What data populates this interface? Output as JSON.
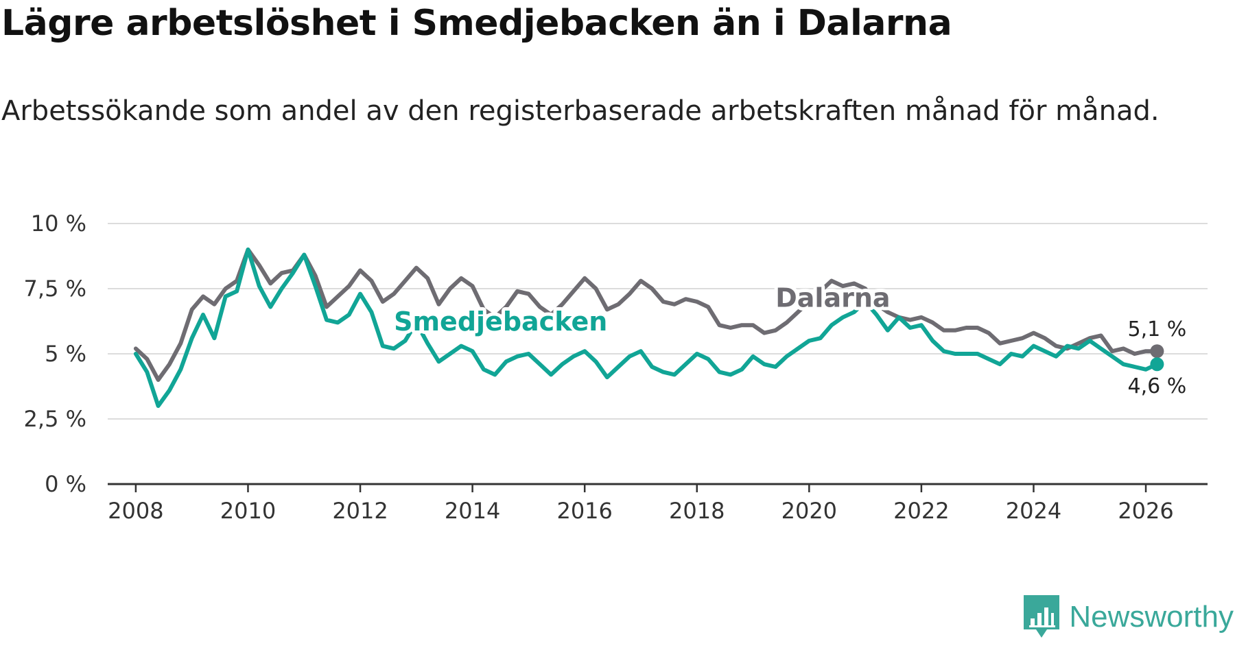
{
  "header": {
    "title": "Lägre arbetslöshet i Smedjebacken än i Dalarna",
    "subtitle": "Arbetssökande som andel av den registerbaserade arbetskraften månad för månad."
  },
  "brand": {
    "name": "Newsworthy",
    "icon": "bar-chart-icon",
    "color": "#3aa89a"
  },
  "chart_data": {
    "type": "line",
    "title": "Lägre arbetslöshet i Smedjebacken än i Dalarna",
    "subtitle": "Arbetssökande som andel av den registerbaserade arbetskraften månad för månad.",
    "xlabel": "",
    "ylabel": "",
    "xlim": [
      2007.5,
      2027.1
    ],
    "ylim": [
      0,
      10
    ],
    "x_ticks": [
      2008,
      2010,
      2012,
      2014,
      2016,
      2018,
      2020,
      2022,
      2024,
      2026
    ],
    "x_tick_labels": [
      "2008",
      "2010",
      "2012",
      "2014",
      "2016",
      "2018",
      "2020",
      "2022",
      "2024",
      "2026"
    ],
    "y_ticks": [
      0,
      2.5,
      5,
      7.5,
      10
    ],
    "y_tick_labels": [
      "0 %",
      "2,5 %",
      "5 %",
      "7,5 %",
      "10 %"
    ],
    "grid": true,
    "series": [
      {
        "name": "Dalarna",
        "color": "#6e6c72",
        "end_label": "5,1 %",
        "x": [
          2008.0,
          2008.2,
          2008.4,
          2008.6,
          2008.8,
          2009.0,
          2009.2,
          2009.4,
          2009.6,
          2009.8,
          2010.0,
          2010.2,
          2010.4,
          2010.6,
          2010.8,
          2011.0,
          2011.2,
          2011.4,
          2011.6,
          2011.8,
          2012.0,
          2012.2,
          2012.4,
          2012.6,
          2012.8,
          2013.0,
          2013.2,
          2013.4,
          2013.6,
          2013.8,
          2014.0,
          2014.2,
          2014.4,
          2014.6,
          2014.8,
          2015.0,
          2015.2,
          2015.4,
          2015.6,
          2015.8,
          2016.0,
          2016.2,
          2016.4,
          2016.6,
          2016.8,
          2017.0,
          2017.2,
          2017.4,
          2017.6,
          2017.8,
          2018.0,
          2018.2,
          2018.4,
          2018.6,
          2018.8,
          2019.0,
          2019.2,
          2019.4,
          2019.6,
          2019.8,
          2020.0,
          2020.2,
          2020.4,
          2020.6,
          2020.8,
          2021.0,
          2021.2,
          2021.4,
          2021.6,
          2021.8,
          2022.0,
          2022.2,
          2022.4,
          2022.6,
          2022.8,
          2023.0,
          2023.2,
          2023.4,
          2023.6,
          2023.8,
          2024.0,
          2024.2,
          2024.4,
          2024.6,
          2024.8,
          2025.0,
          2025.2,
          2025.4,
          2025.6,
          2025.8,
          2026.0,
          2026.2
        ],
        "y": [
          5.2,
          4.8,
          4.0,
          4.6,
          5.4,
          6.7,
          7.2,
          6.9,
          7.5,
          7.8,
          9.0,
          8.4,
          7.7,
          8.1,
          8.2,
          8.8,
          8.0,
          6.8,
          7.2,
          7.6,
          8.2,
          7.8,
          7.0,
          7.3,
          7.8,
          8.3,
          7.9,
          6.9,
          7.5,
          7.9,
          7.6,
          6.7,
          6.4,
          6.8,
          7.4,
          7.3,
          6.8,
          6.5,
          6.9,
          7.4,
          7.9,
          7.5,
          6.7,
          6.9,
          7.3,
          7.8,
          7.5,
          7.0,
          6.9,
          7.1,
          7.0,
          6.8,
          6.1,
          6.0,
          6.1,
          6.1,
          5.8,
          5.9,
          6.2,
          6.6,
          7.0,
          7.4,
          7.8,
          7.6,
          7.7,
          7.5,
          6.9,
          6.6,
          6.4,
          6.3,
          6.4,
          6.2,
          5.9,
          5.9,
          6.0,
          6.0,
          5.8,
          5.4,
          5.5,
          5.6,
          5.8,
          5.6,
          5.3,
          5.2,
          5.4,
          5.6,
          5.7,
          5.1,
          5.2,
          5.0,
          5.1,
          5.1
        ]
      },
      {
        "name": "Smedjebacken",
        "color": "#11a596",
        "end_label": "4,6 %",
        "x": [
          2008.0,
          2008.2,
          2008.4,
          2008.6,
          2008.8,
          2009.0,
          2009.2,
          2009.4,
          2009.6,
          2009.8,
          2010.0,
          2010.2,
          2010.4,
          2010.6,
          2010.8,
          2011.0,
          2011.2,
          2011.4,
          2011.6,
          2011.8,
          2012.0,
          2012.2,
          2012.4,
          2012.6,
          2012.8,
          2013.0,
          2013.2,
          2013.4,
          2013.6,
          2013.8,
          2014.0,
          2014.2,
          2014.4,
          2014.6,
          2014.8,
          2015.0,
          2015.2,
          2015.4,
          2015.6,
          2015.8,
          2016.0,
          2016.2,
          2016.4,
          2016.6,
          2016.8,
          2017.0,
          2017.2,
          2017.4,
          2017.6,
          2017.8,
          2018.0,
          2018.2,
          2018.4,
          2018.6,
          2018.8,
          2019.0,
          2019.2,
          2019.4,
          2019.6,
          2019.8,
          2020.0,
          2020.2,
          2020.4,
          2020.6,
          2020.8,
          2021.0,
          2021.2,
          2021.4,
          2021.6,
          2021.8,
          2022.0,
          2022.2,
          2022.4,
          2022.6,
          2022.8,
          2023.0,
          2023.2,
          2023.4,
          2023.6,
          2023.8,
          2024.0,
          2024.2,
          2024.4,
          2024.6,
          2024.8,
          2025.0,
          2025.2,
          2025.4,
          2025.6,
          2025.8,
          2026.0,
          2026.2
        ],
        "y": [
          5.0,
          4.3,
          3.0,
          3.6,
          4.4,
          5.6,
          6.5,
          5.6,
          7.2,
          7.4,
          9.0,
          7.6,
          6.8,
          7.5,
          8.1,
          8.8,
          7.6,
          6.3,
          6.2,
          6.5,
          7.3,
          6.6,
          5.3,
          5.2,
          5.5,
          6.2,
          5.4,
          4.7,
          5.0,
          5.3,
          5.1,
          4.4,
          4.2,
          4.7,
          4.9,
          5.0,
          4.6,
          4.2,
          4.6,
          4.9,
          5.1,
          4.7,
          4.1,
          4.5,
          4.9,
          5.1,
          4.5,
          4.3,
          4.2,
          4.6,
          5.0,
          4.8,
          4.3,
          4.2,
          4.4,
          4.9,
          4.6,
          4.5,
          4.9,
          5.2,
          5.5,
          5.6,
          6.1,
          6.4,
          6.6,
          7.0,
          6.5,
          5.9,
          6.4,
          6.0,
          6.1,
          5.5,
          5.1,
          5.0,
          5.0,
          5.0,
          4.8,
          4.6,
          5.0,
          4.9,
          5.3,
          5.1,
          4.9,
          5.3,
          5.2,
          5.5,
          5.2,
          4.9,
          4.6,
          4.5,
          4.4,
          4.6
        ]
      }
    ],
    "annotations": [
      {
        "text": "Dalarna",
        "series": "Dalarna",
        "x": 2019.4,
        "y": 6.8
      },
      {
        "text": "Smedjebacken",
        "series": "Smedjebacken",
        "x": 2012.6,
        "y": 5.9
      }
    ]
  }
}
